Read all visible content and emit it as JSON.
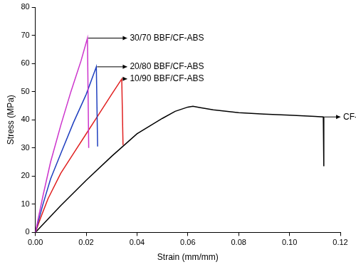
{
  "chart_data": {
    "type": "line",
    "x_label": "Strain (mm/mm)",
    "y_label": "Stress (MPa)",
    "xlim": [
      0,
      0.12
    ],
    "ylim": [
      0,
      80
    ],
    "xticks": [
      {
        "value": 0,
        "label": "0.00"
      },
      {
        "value": 0.02,
        "label": "0.02"
      },
      {
        "value": 0.04,
        "label": "0.04"
      },
      {
        "value": 0.06,
        "label": "0.06"
      },
      {
        "value": 0.08,
        "label": "0.08"
      },
      {
        "value": 0.1,
        "label": "0.10"
      },
      {
        "value": 0.12,
        "label": "0.12"
      }
    ],
    "yticks": [
      0,
      10,
      20,
      30,
      40,
      50,
      60,
      70,
      80
    ],
    "grid": false,
    "series": [
      {
        "name": "30/70 BBF/CF-ABS",
        "color": "#cc33cc",
        "x": [
          0,
          0.003,
          0.006,
          0.01,
          0.014,
          0.018,
          0.0205,
          0.021
        ],
        "values": [
          0,
          13,
          25,
          38,
          50,
          61,
          69,
          30
        ]
      },
      {
        "name": "20/80 BBF/CF-ABS",
        "color": "#1f3fbf",
        "x": [
          0,
          0.003,
          0.006,
          0.01,
          0.015,
          0.02,
          0.024,
          0.0245
        ],
        "values": [
          0,
          10,
          19,
          28,
          39,
          49,
          58.8,
          30.5
        ]
      },
      {
        "name": "10/90 BBF/CF-ABS",
        "color": "#e02020",
        "x": [
          0,
          0.002,
          0.005,
          0.01,
          0.015,
          0.02,
          0.025,
          0.03,
          0.034,
          0.0345
        ],
        "values": [
          0,
          5,
          12,
          21,
          28,
          35,
          42,
          49,
          54.5,
          31
        ]
      },
      {
        "name": "CF-ABS",
        "color": "#000000",
        "x": [
          0,
          0.01,
          0.02,
          0.03,
          0.04,
          0.05,
          0.055,
          0.06,
          0.062,
          0.065,
          0.07,
          0.08,
          0.09,
          0.1,
          0.11,
          0.1133,
          0.1135
        ],
        "values": [
          0,
          9.5,
          18.5,
          27,
          35,
          40.5,
          43,
          44.5,
          44.8,
          44.3,
          43.5,
          42.5,
          42,
          41.6,
          41.2,
          41,
          23.5
        ]
      }
    ]
  }
}
